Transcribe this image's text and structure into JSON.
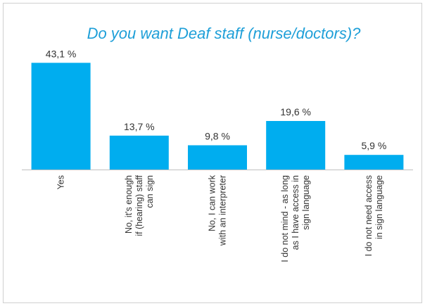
{
  "chart_data": {
    "type": "bar",
    "title": "Do you want Deaf staff (nurse/doctors)?",
    "categories": [
      [
        "Yes"
      ],
      [
        "No, it's enough",
        "if (hearing) staff",
        "can sign"
      ],
      [
        "No, I can work",
        "with an interpreter"
      ],
      [
        "I do not mind - as long",
        "as I have access in",
        "sign language"
      ],
      [
        "I do not need access",
        "in sign language"
      ]
    ],
    "values": [
      43.1,
      13.7,
      9.8,
      19.6,
      5.9
    ],
    "value_labels": [
      "43,1 %",
      "13,7 %",
      "9,8 %",
      "19,6 %",
      "5,9 %"
    ],
    "ylim": [
      0,
      50
    ],
    "grid": false,
    "colors": {
      "bar": "#00adef",
      "axis": "#bfbfbf",
      "title": "#1e9fd8"
    }
  }
}
